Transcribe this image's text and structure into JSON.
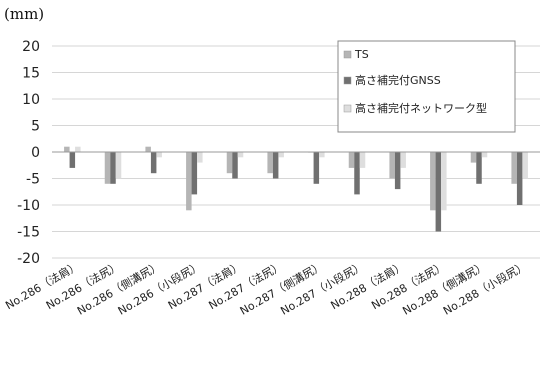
{
  "chart_data": {
    "type": "bar",
    "y_unit": "(mm)",
    "categories": [
      "No.286（法肩）",
      "No.286（法尻）",
      "No.286（側溝尻）",
      "No.286（小段尻）",
      "No.287（法肩）",
      "No.287（法尻）",
      "No.287（側溝尻）",
      "No.287（小段尻）",
      "No.288（法肩）",
      "No.288（法尻）",
      "No.288（側溝尻）",
      "No.288（小段尻）"
    ],
    "series": [
      {
        "name": "TS",
        "color": "#b5b5b5",
        "values": [
          1,
          -6,
          1,
          -11,
          -4,
          -4,
          0,
          -3,
          -5,
          -11,
          -2,
          -6
        ]
      },
      {
        "name": "高さ補完付GNSS",
        "color": "#707070",
        "values": [
          -3,
          -6,
          -4,
          -8,
          -5,
          -5,
          -6,
          -8,
          -7,
          -15,
          -6,
          -10
        ]
      },
      {
        "name": "高さ補完付ネットワーク型",
        "color": "#dedede",
        "values": [
          1,
          -5,
          -1,
          -2,
          -1,
          -1,
          -1,
          -3,
          -3,
          -11,
          -1,
          -5
        ]
      }
    ],
    "ylim": [
      -20,
      20
    ],
    "yticks": [
      20,
      15,
      10,
      5,
      0,
      -5,
      -10,
      -15,
      -20
    ],
    "grid": true,
    "legend_position": "top-right"
  }
}
